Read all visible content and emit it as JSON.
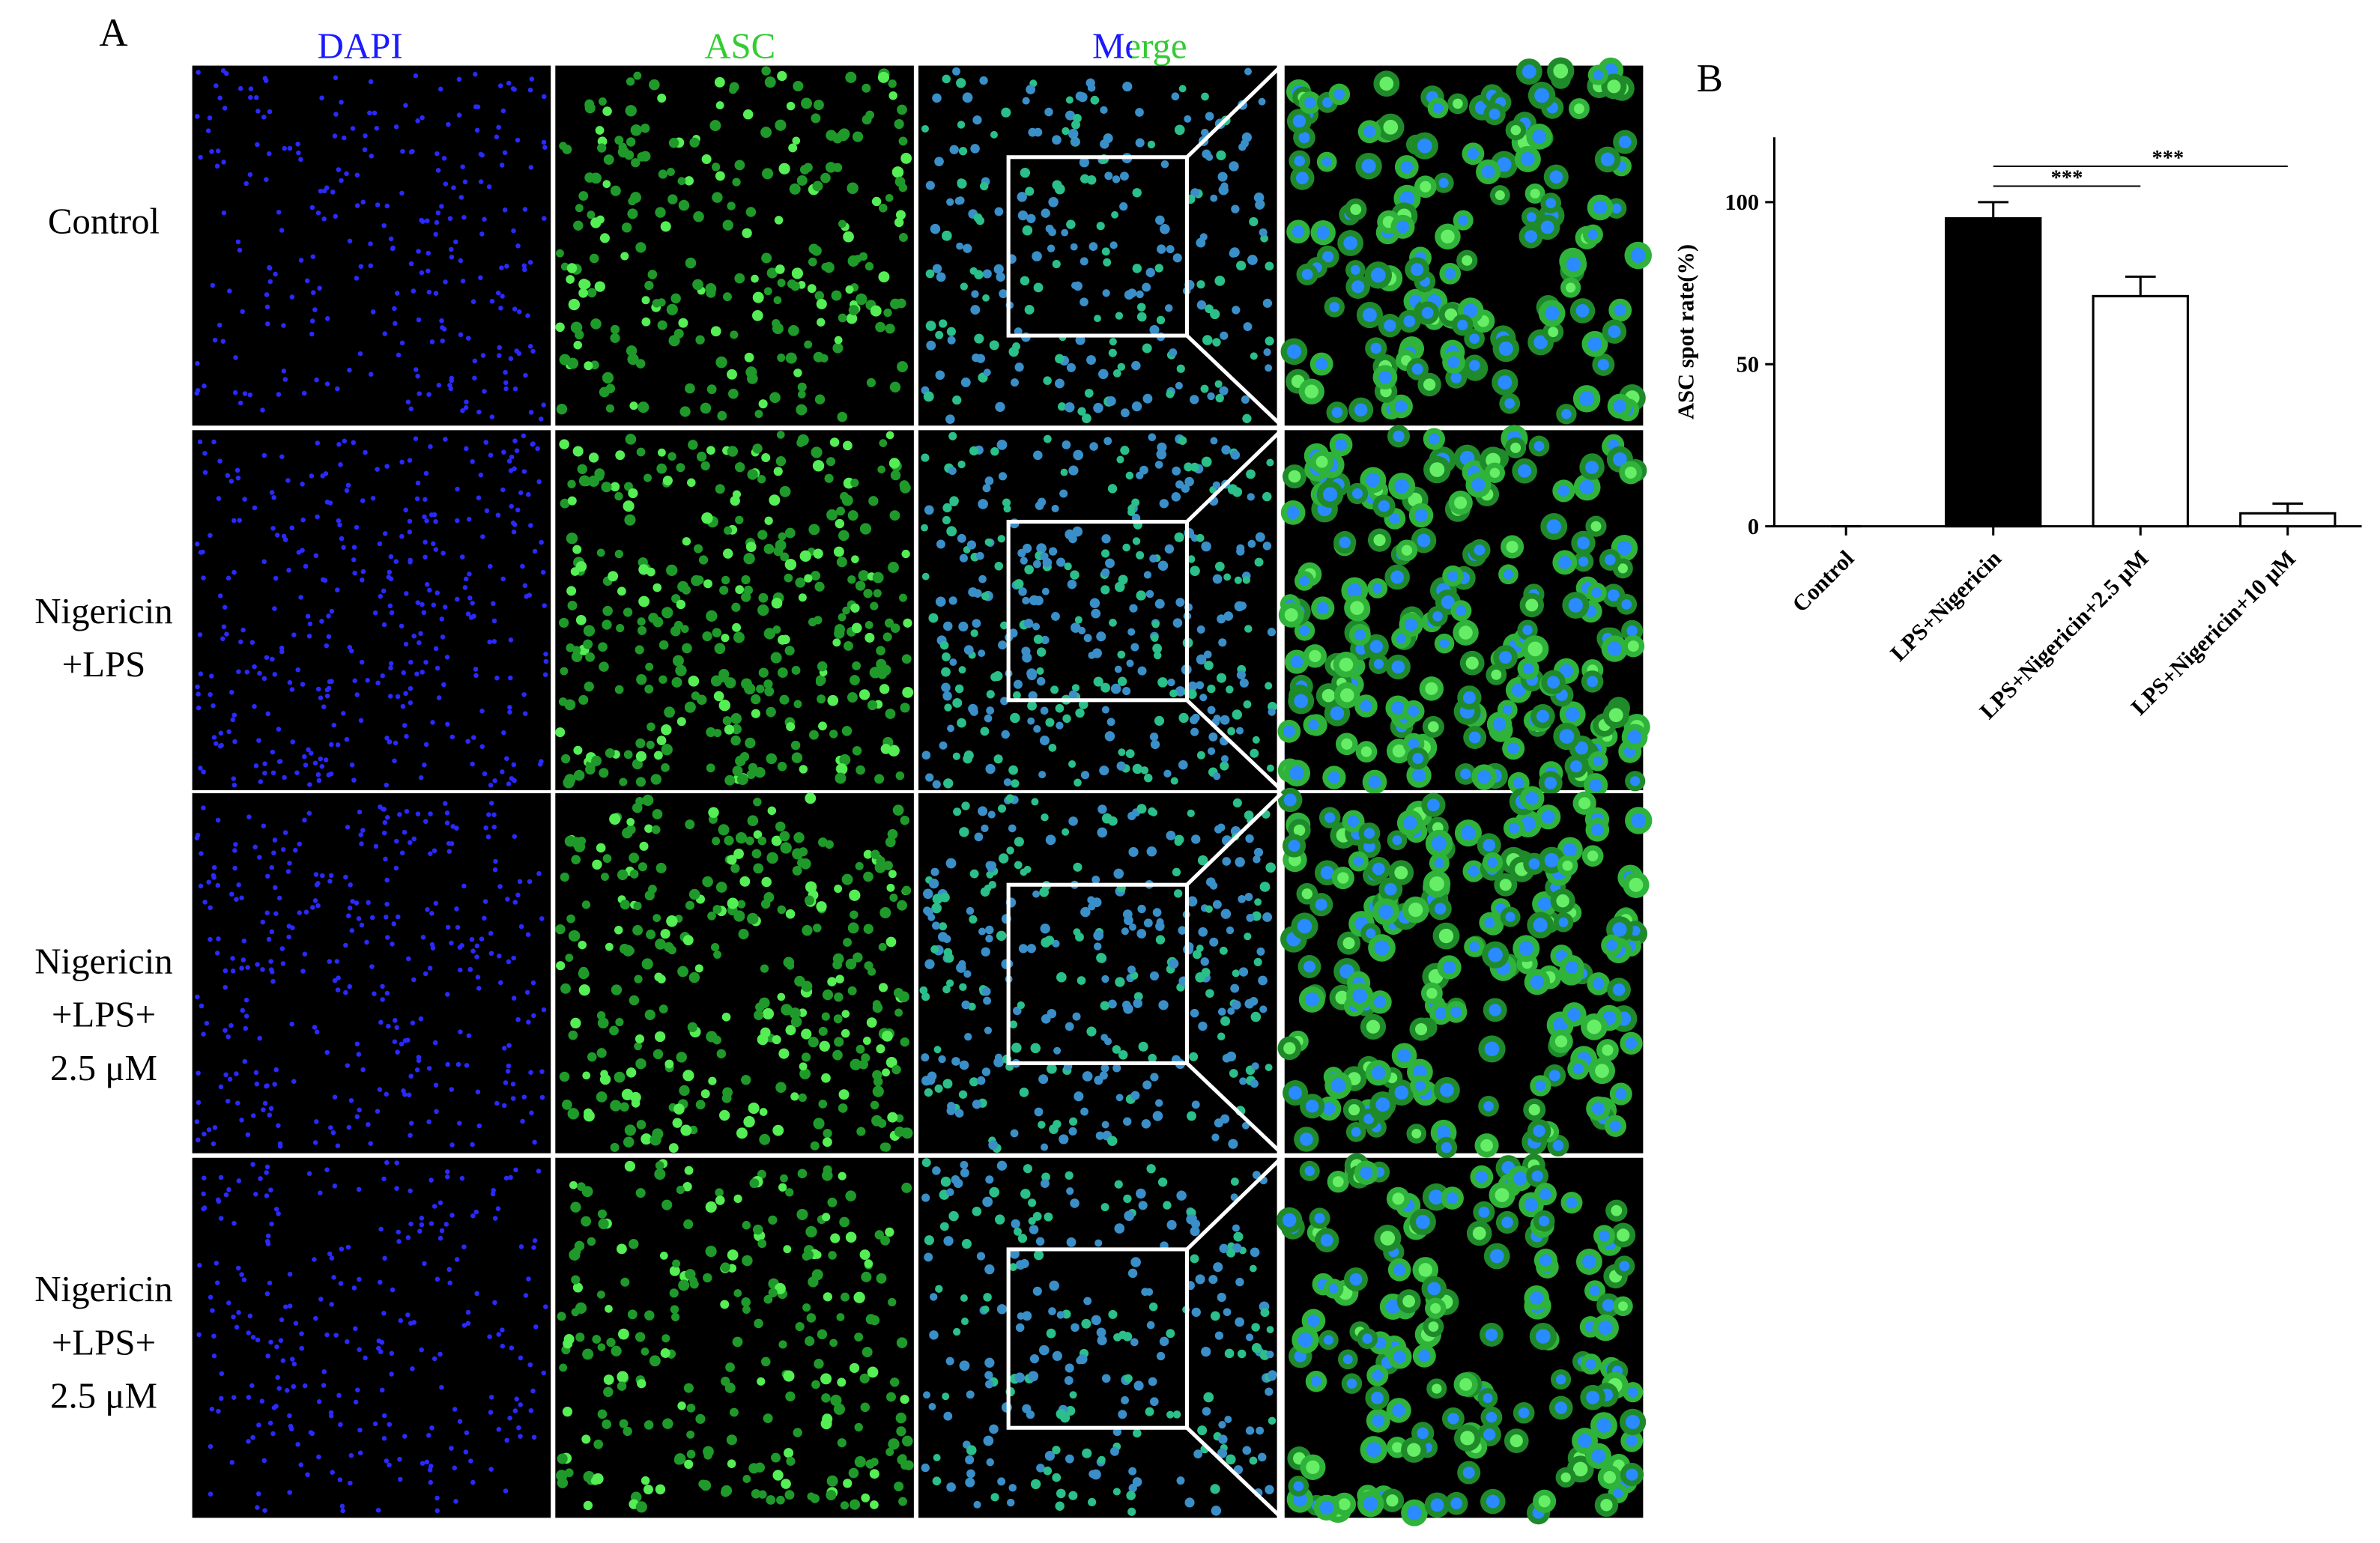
{
  "panel_a": {
    "label": "A",
    "columns": [
      "DAPI",
      "ASC",
      "Merge"
    ],
    "rows": [
      [
        "Control"
      ],
      [
        "Nigericin",
        "+LPS"
      ],
      [
        "Nigericin",
        "+LPS+",
        "2.5 μM"
      ],
      [
        "Nigericin",
        "+LPS+",
        "2.5 μM"
      ]
    ]
  },
  "chart_data": {
    "type": "bar",
    "label": "B",
    "ylabel": "ASC spot rate(%)",
    "categories": [
      "Control",
      "LPS+Nigericin",
      "LPS+Nigericin+2.5 μM",
      "LPS+Nigericin+10 μM"
    ],
    "values": [
      0,
      95,
      71,
      4
    ],
    "errors": [
      0,
      5,
      6,
      3
    ],
    "colors": [
      "#000000",
      "#000000",
      "#ffffff",
      "#ffffff"
    ],
    "ylim": [
      0,
      120
    ],
    "yticks": [
      0,
      50,
      100
    ],
    "annotations": [
      {
        "text": "***",
        "pair": [
          1,
          2
        ]
      },
      {
        "text": "***",
        "pair": [
          1,
          3
        ]
      }
    ]
  }
}
